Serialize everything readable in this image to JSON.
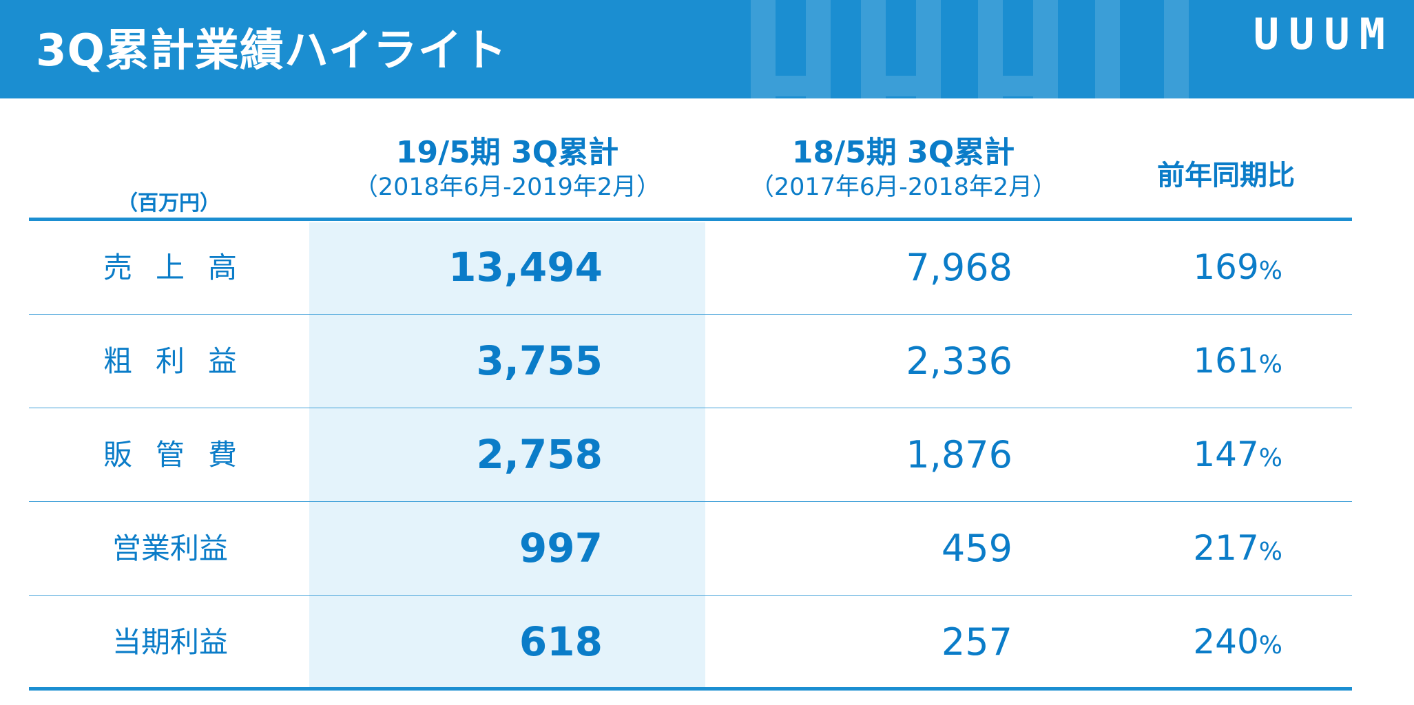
{
  "header": {
    "title": "3Q累計業績ハイライト",
    "logo_text": "UUUM"
  },
  "table": {
    "unit_label": "（百万円）",
    "columns": {
      "current": {
        "title": "19/5期 3Q累計",
        "period": "（2018年6月-2019年2月）"
      },
      "previous": {
        "title": "18/5期 3Q累計",
        "period": "（2017年6月-2018年2月）"
      },
      "yoy": {
        "title": "前年同期比"
      }
    },
    "percent_symbol": "%",
    "rows": [
      {
        "label": "売上高",
        "current": "13,494",
        "previous": "7,968",
        "yoy": "169"
      },
      {
        "label": "粗利益",
        "current": "3,755",
        "previous": "2,336",
        "yoy": "161"
      },
      {
        "label": "販管費",
        "current": "2,758",
        "previous": "1,876",
        "yoy": "147"
      },
      {
        "label": "営業利益",
        "current": "997",
        "previous": "459",
        "yoy": "217"
      },
      {
        "label": "当期利益",
        "current": "618",
        "previous": "257",
        "yoy": "240"
      }
    ]
  },
  "colors": {
    "header_background": "#1b8ed1",
    "text_primary": "#0a7cc8",
    "highlight_column": "#e4f3fb",
    "rule_lines": "#1b8ed1"
  }
}
